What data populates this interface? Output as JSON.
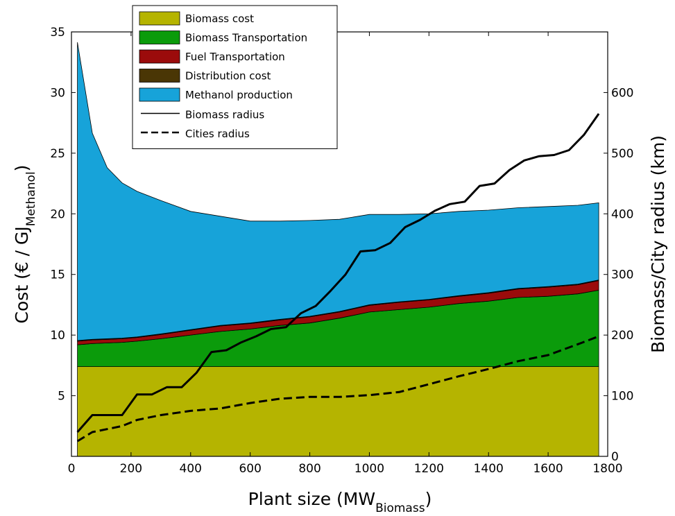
{
  "chart_data": {
    "type": "area",
    "xlabel": "Plant size (MW",
    "xlabel_sub": "Biomass",
    "xlabel_close": ")",
    "ylabel": "Cost (€ / GJ",
    "ylabel_sub": "Methanol",
    "ylabel_close": ")",
    "y2label": "Biomass/City radius (km)",
    "xlim": [
      0,
      1800
    ],
    "ylim": [
      0,
      35
    ],
    "y2lim": [
      0,
      700
    ],
    "xticks": [
      0,
      200,
      400,
      600,
      800,
      1000,
      1200,
      1400,
      1600,
      1800
    ],
    "yticks": [
      5,
      10,
      15,
      20,
      25,
      30,
      35
    ],
    "y2ticks": [
      0,
      100,
      200,
      300,
      400,
      500,
      600
    ],
    "legend_position": "top-center",
    "x": [
      20,
      70,
      120,
      170,
      220,
      300,
      400,
      500,
      600,
      700,
      800,
      900,
      1000,
      1100,
      1200,
      1300,
      1400,
      1500,
      1600,
      1700,
      1770
    ],
    "stacked_series": [
      {
        "name": "Biomass cost",
        "color": "#b5b400",
        "values": [
          7.4,
          7.4,
          7.4,
          7.4,
          7.4,
          7.4,
          7.4,
          7.4,
          7.4,
          7.4,
          7.4,
          7.4,
          7.4,
          7.4,
          7.4,
          7.4,
          7.4,
          7.4,
          7.4,
          7.4,
          7.4
        ]
      },
      {
        "name": "Biomass Transportation",
        "color": "#0b9b0b",
        "values": [
          1.8,
          1.9,
          1.95,
          2.0,
          2.1,
          2.3,
          2.6,
          2.9,
          3.1,
          3.4,
          3.6,
          4.0,
          4.5,
          4.7,
          4.9,
          5.2,
          5.4,
          5.7,
          5.8,
          6.0,
          6.3
        ]
      },
      {
        "name": "Fuel Transportation",
        "color": "#9b0b0b",
        "values": [
          0.3,
          0.3,
          0.3,
          0.3,
          0.3,
          0.35,
          0.4,
          0.45,
          0.45,
          0.45,
          0.5,
          0.5,
          0.55,
          0.6,
          0.6,
          0.6,
          0.65,
          0.7,
          0.75,
          0.75,
          0.8
        ]
      },
      {
        "name": "Distribution cost",
        "color": "#4a3605",
        "values": [
          0.05,
          0.05,
          0.05,
          0.05,
          0.05,
          0.05,
          0.05,
          0.05,
          0.05,
          0.05,
          0.05,
          0.05,
          0.05,
          0.05,
          0.05,
          0.05,
          0.05,
          0.05,
          0.05,
          0.05,
          0.05
        ]
      },
      {
        "name": "Methanol production",
        "color": "#17a3d9",
        "values": [
          24.6,
          17.0,
          14.1,
          12.8,
          12.0,
          11.0,
          9.75,
          9.0,
          8.4,
          8.1,
          7.9,
          7.6,
          7.45,
          7.2,
          7.05,
          6.95,
          6.8,
          6.65,
          6.6,
          6.5,
          6.35
        ]
      }
    ],
    "line_series": [
      {
        "name": "Biomass radius",
        "style": "solid",
        "axis": "right",
        "x": [
          20,
          70,
          120,
          170,
          220,
          270,
          320,
          370,
          420,
          470,
          520,
          570,
          620,
          670,
          720,
          770,
          820,
          870,
          920,
          970,
          1020,
          1070,
          1120,
          1170,
          1220,
          1270,
          1320,
          1370,
          1420,
          1470,
          1520,
          1570,
          1620,
          1670,
          1720,
          1770
        ],
        "values": [
          40,
          68,
          68,
          68,
          102,
          102,
          114,
          114,
          138,
          172,
          175,
          188,
          198,
          210,
          213,
          236,
          248,
          273,
          300,
          338,
          340,
          352,
          378,
          390,
          405,
          416,
          420,
          446,
          450,
          472,
          488,
          495,
          497,
          505,
          530,
          565
        ]
      },
      {
        "name": "Cities radius",
        "style": "dashed",
        "axis": "right",
        "x": [
          20,
          70,
          120,
          170,
          220,
          300,
          400,
          500,
          600,
          700,
          800,
          900,
          1000,
          1100,
          1200,
          1300,
          1400,
          1500,
          1600,
          1700,
          1770
        ],
        "values": [
          25,
          40,
          45,
          50,
          60,
          68,
          75,
          79,
          88,
          95,
          98,
          98,
          101,
          106,
          119,
          132,
          144,
          157,
          167,
          185,
          198
        ]
      }
    ]
  }
}
